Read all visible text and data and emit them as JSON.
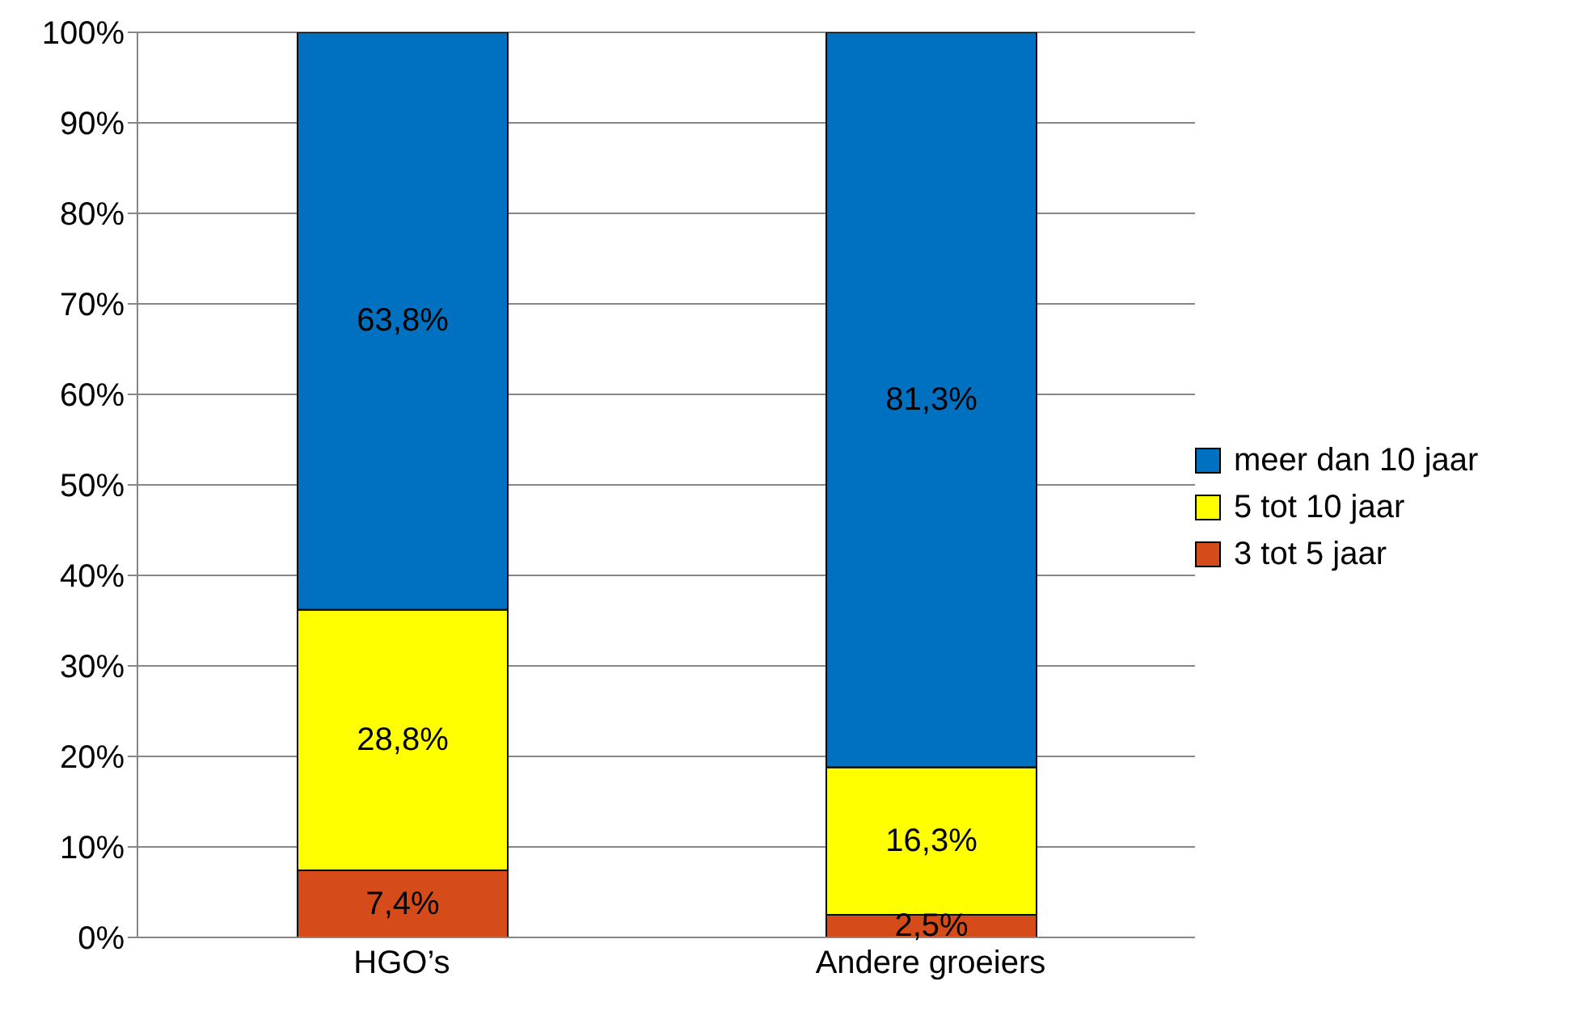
{
  "chart_data": {
    "type": "bar",
    "stacked": true,
    "categories": [
      "HGO’s",
      "Andere groeiers"
    ],
    "series": [
      {
        "name": "3 tot 5 jaar",
        "color": "#d54b1a",
        "values": [
          7.4,
          2.5
        ],
        "value_labels": [
          "7,4%",
          "2,5%"
        ]
      },
      {
        "name": "5 tot 10 jaar",
        "color": "#ffff00",
        "values": [
          28.8,
          16.3
        ],
        "value_labels": [
          "28,8%",
          "16,3%"
        ]
      },
      {
        "name": "meer dan 10 jaar",
        "color": "#0070c0",
        "values": [
          63.8,
          81.3
        ],
        "value_labels": [
          "63,8%",
          "81,3%"
        ]
      }
    ],
    "ylim": [
      0,
      100
    ],
    "yticks": [
      {
        "value": 0,
        "label": "0%"
      },
      {
        "value": 10,
        "label": "10%"
      },
      {
        "value": 20,
        "label": "20%"
      },
      {
        "value": 30,
        "label": "30%"
      },
      {
        "value": 40,
        "label": "40%"
      },
      {
        "value": 50,
        "label": "50%"
      },
      {
        "value": 60,
        "label": "60%"
      },
      {
        "value": 70,
        "label": "70%"
      },
      {
        "value": 80,
        "label": "80%"
      },
      {
        "value": 90,
        "label": "90%"
      },
      {
        "value": 100,
        "label": "100%"
      }
    ],
    "grid": "y",
    "legend": "right"
  }
}
